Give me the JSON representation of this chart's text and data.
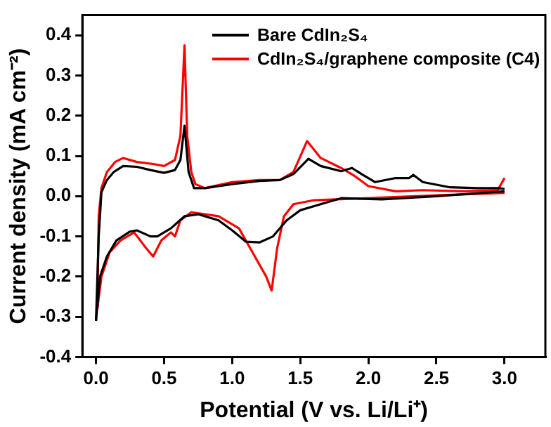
{
  "chart_data": {
    "type": "line",
    "xlabel": "Potential (V vs. Li/Li⁺)",
    "ylabel": "Current density (mA cm⁻²)",
    "xlim": [
      -0.1,
      3.3
    ],
    "ylim": [
      -0.4,
      0.45
    ],
    "xticks": [
      {
        "value": 0,
        "label": "0.0"
      },
      {
        "value": 0.5,
        "label": "0.5"
      },
      {
        "value": 1,
        "label": "1.0"
      },
      {
        "value": 1.5,
        "label": "1.5"
      },
      {
        "value": 2,
        "label": "2.0"
      },
      {
        "value": 2.5,
        "label": "2.5"
      },
      {
        "value": 3,
        "label": "3.0"
      }
    ],
    "yticks": [
      -0.4,
      -0.3,
      -0.2,
      -0.1,
      {
        "value": 0,
        "label": "0.0"
      },
      0.1,
      0.2,
      0.3,
      0.4
    ],
    "legend": "top right",
    "marker": "none",
    "line_style": "solid",
    "grid": false,
    "series": [
      {
        "name": "Bare CdIn₂S₄",
        "color": "#000000",
        "x": [
          0,
          0.02,
          0.04,
          0.08,
          0.13,
          0.2,
          0.3,
          0.4,
          0.5,
          0.58,
          0.62,
          0.65,
          0.68,
          0.72,
          0.8,
          1.0,
          1.2,
          1.35,
          1.45,
          1.56,
          1.65,
          1.8,
          1.88,
          1.95,
          2.05,
          2.2,
          2.3,
          2.33,
          2.4,
          2.6,
          2.8,
          2.95,
          3.0
        ],
        "values": [
          -0.31,
          -0.1,
          0.01,
          0.04,
          0.06,
          0.075,
          0.073,
          0.065,
          0.058,
          0.065,
          0.09,
          0.175,
          0.06,
          0.02,
          0.02,
          0.03,
          0.038,
          0.04,
          0.055,
          0.093,
          0.075,
          0.062,
          0.07,
          0.055,
          0.035,
          0.045,
          0.045,
          0.053,
          0.035,
          0.022,
          0.02,
          0.02,
          0.018
        ]
      },
      {
        "color": "#000000",
        "x": [
          0,
          0.03,
          0.08,
          0.15,
          0.25,
          0.3,
          0.4,
          0.45,
          0.55,
          0.65,
          0.75,
          0.9,
          1.0,
          1.1,
          1.2,
          1.3,
          1.4,
          1.5,
          1.65,
          1.8,
          2.1,
          2.5,
          3.0
        ],
        "values": [
          -0.31,
          -0.2,
          -0.15,
          -0.11,
          -0.088,
          -0.085,
          -0.1,
          -0.1,
          -0.08,
          -0.05,
          -0.045,
          -0.06,
          -0.085,
          -0.113,
          -0.115,
          -0.1,
          -0.06,
          -0.035,
          -0.02,
          -0.005,
          -0.008,
          0.0,
          0.012
        ]
      },
      {
        "name": "CdIn₂S₄/graphene composite (C4)",
        "color": "#ff0000",
        "x": [
          0.01,
          0.02,
          0.04,
          0.08,
          0.14,
          0.2,
          0.3,
          0.42,
          0.5,
          0.58,
          0.62,
          0.65,
          0.67,
          0.7,
          0.73,
          0.8,
          1.0,
          1.2,
          1.35,
          1.45,
          1.55,
          1.65,
          1.8,
          1.9,
          2.0,
          2.2,
          2.4,
          2.7,
          2.95,
          3.0
        ],
        "values": [
          -0.28,
          -0.05,
          0.02,
          0.06,
          0.085,
          0.095,
          0.085,
          0.08,
          0.075,
          0.09,
          0.15,
          0.375,
          0.15,
          0.06,
          0.03,
          0.02,
          0.035,
          0.04,
          0.04,
          0.06,
          0.137,
          0.095,
          0.07,
          0.05,
          0.025,
          0.012,
          0.015,
          0.012,
          0.015,
          0.045
        ]
      },
      {
        "color": "#ff0000",
        "x": [
          0.01,
          0.04,
          0.1,
          0.18,
          0.28,
          0.37,
          0.42,
          0.48,
          0.55,
          0.58,
          0.62,
          0.7,
          0.9,
          1.05,
          1.15,
          1.25,
          1.29,
          1.33,
          1.38,
          1.45,
          1.6,
          2.0,
          2.5,
          3.0
        ],
        "values": [
          -0.28,
          -0.2,
          -0.14,
          -0.11,
          -0.09,
          -0.13,
          -0.15,
          -0.11,
          -0.09,
          -0.1,
          -0.06,
          -0.04,
          -0.05,
          -0.08,
          -0.14,
          -0.2,
          -0.235,
          -0.13,
          -0.05,
          -0.02,
          -0.01,
          -0.005,
          0.002,
          0.008
        ]
      }
    ]
  }
}
